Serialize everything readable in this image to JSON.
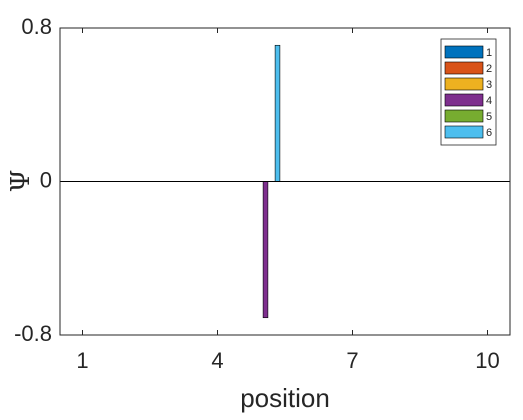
{
  "chart_data": {
    "type": "bar",
    "xlabel": "position",
    "ylabel": "Ψ",
    "x": [
      1,
      2,
      3,
      4,
      5,
      6,
      7,
      8,
      9,
      10
    ],
    "series": [
      {
        "name": "1",
        "color": "#0072BD",
        "values": [
          0,
          0,
          0,
          0,
          0,
          0,
          0,
          0,
          0,
          0
        ]
      },
      {
        "name": "2",
        "color": "#D95319",
        "values": [
          0,
          0,
          0,
          0,
          0,
          0,
          0,
          0,
          0,
          0
        ]
      },
      {
        "name": "3",
        "color": "#EDB120",
        "values": [
          0,
          0,
          0,
          0,
          0,
          0,
          0,
          0,
          0,
          0
        ]
      },
      {
        "name": "4",
        "color": "#7E2F8E",
        "values": [
          0,
          0,
          0,
          0,
          -0.71,
          0,
          0,
          0,
          0,
          0
        ]
      },
      {
        "name": "5",
        "color": "#77AC30",
        "values": [
          0,
          0,
          0,
          0,
          0,
          0,
          0,
          0,
          0,
          0
        ]
      },
      {
        "name": "6",
        "color": "#4DBEEE",
        "values": [
          0,
          0,
          0,
          0,
          0.71,
          0,
          0,
          0,
          0,
          0
        ]
      }
    ],
    "xlim": [
      0.5,
      10.5
    ],
    "xticks": [
      1,
      4,
      7,
      10
    ],
    "ylim": [
      -0.8,
      0.8
    ],
    "yticks": [
      -0.8,
      0,
      0.8
    ],
    "legend": "top-right"
  }
}
